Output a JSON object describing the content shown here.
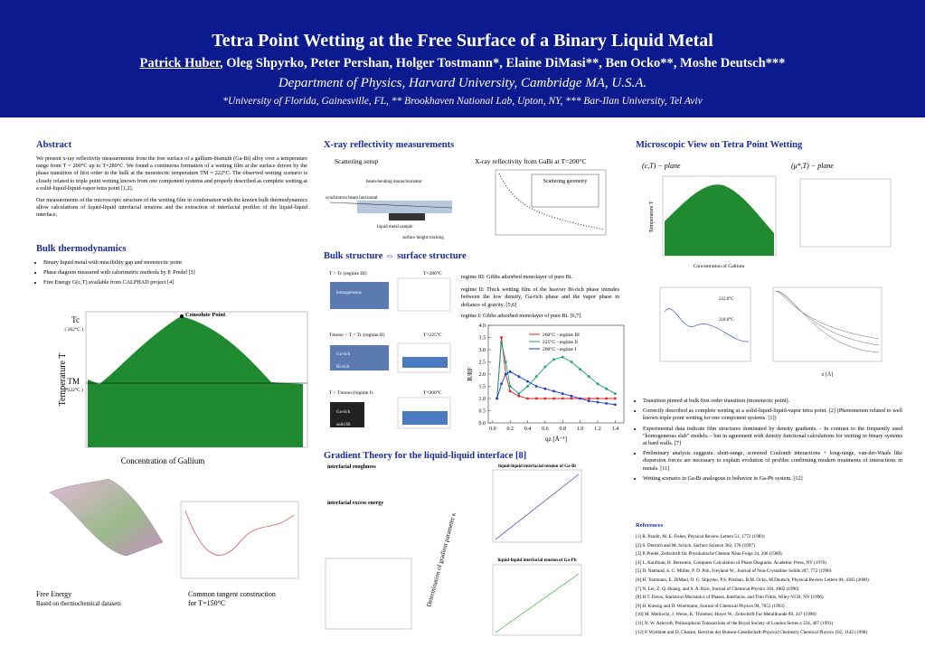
{
  "header": {
    "title": "Tetra Point Wetting at the Free Surface of a Binary Liquid Metal",
    "author_lead": "Patrick Huber",
    "authors_rest": ", Oleg Shpyrko, Peter Pershan, Holger Tostmann*, Elaine DiMasi**, Ben Ocko**, Moshe Deutsch***",
    "department": "Department of Physics, Harvard University, Cambridge MA, U.S.A.",
    "affiliations": "*University of Florida, Gainesville, FL, ** Brookhaven National Lab, Upton, NY, *** Bar-Ilan University, Tel Aviv"
  },
  "abstract": {
    "heading": "Abstract",
    "paragraphs": [
      "We present x-ray reflectivity measurements from the free surface of a gallium-bismuth (Ga-Bi) alloy over a temperature range from T = 200°C up to T=280°C. We found a continuous formation of a wetting film at the surface driven by the phase transition of first order in the bulk at the monotectic temperature TM = 222°C. The observed wetting scenario is closely related to triple point wetting known from one component systems and properly described as complete wetting at a solid-liquid-liquid-vapor tetra point [1,2].",
      "Our measurements of the microscopic structure of the wetting film in combination with the known bulk thermodynamics allow calculations of liquid-liquid interfacial tensions and the extraction of interfacial profiles of the liquid-liquid interface."
    ]
  },
  "bulk": {
    "heading": "Bulk thermodynamics",
    "bullets": [
      "Binary liquid metal with miscibility gap and monotectic point",
      "Phase diagram measured with calorimetric methods by P. Predel [3]",
      "Free Energy G(c,T) available from CALPHAD project [4]"
    ],
    "consolute": "Consolute Point",
    "tc": "Tc",
    "tc_value": "( 262°C )",
    "tm": "TM",
    "tm_value": "( 222°C )",
    "ylabel": "Temperature T",
    "xlabel": "Concentration of Gallium",
    "free_energy": "Free Energy",
    "free_energy_note": "Based on thermochemical datasets",
    "tangent": "Common tangent construction",
    "tangent_note": "for T=150°C"
  },
  "xray": {
    "heading": "X-ray reflectivity measurements",
    "setup": "Scattering setup",
    "monochromator": "beam-bending monochromator",
    "beam": "synchrotron beam horizontal",
    "sample": "liquid metal sample",
    "tracking": "surface height tracking",
    "reflectivity_title": "X-ray reflectivity from GaBi at T=200°C",
    "geometry": "Scattering geometry"
  },
  "structure": {
    "heading": "Bulk structure ⇔ surface structure",
    "panels": [
      {
        "regime": "T > Tc (regime III)",
        "temperature": "T=280°C",
        "labels": [
          "homogeneous"
        ]
      },
      {
        "regime": "Tmono < T < Tc (regime II)",
        "temperature": "T=225°C",
        "labels": [
          "Ga-rich",
          "Bi-rich"
        ]
      },
      {
        "regime": "T < Tmono (regime I)",
        "temperature": "T=200°C",
        "labels": [
          "Ga-rich",
          "solid Bi"
        ]
      }
    ],
    "regimes": [
      "regime III: Gibbs adsorbed monolayer of pure Bi.",
      "regime II: Thick wetting film of the heavier Bi-rich phase intrudes between the low density, Ga-rich phase and the vapor phase in defiance of gravity. [5,6]",
      "regime I: Gibbs adsorbed monolayer of pure Bi. [6,7]"
    ]
  },
  "chart_data": {
    "type": "line",
    "x_label": "qz [Å⁻¹]",
    "y_label": "R/RF",
    "x": [
      0.05,
      0.1,
      0.15,
      0.2,
      0.3,
      0.4,
      0.5,
      0.6,
      0.7,
      0.8,
      0.9,
      1.0,
      1.1,
      1.2,
      1.3,
      1.4
    ],
    "series": [
      {
        "name": "260°C - regime III",
        "color": "#e02020",
        "values": [
          1.0,
          3.5,
          2.0,
          1.3,
          1.1,
          1.0,
          1.0,
          1.0,
          1.0,
          1.0,
          1.0,
          1.0,
          1.0,
          1.0,
          1.0,
          1.0
        ]
      },
      {
        "name": "225°C - regime II",
        "color": "#15a07a",
        "values": [
          1.0,
          3.3,
          2.5,
          1.5,
          1.2,
          1.5,
          1.9,
          2.3,
          2.6,
          2.7,
          2.5,
          2.2,
          1.9,
          1.6,
          1.4,
          1.2
        ]
      },
      {
        "name": "200°C - regime I",
        "color": "#1a3ad0",
        "values": [
          1.0,
          1.6,
          2.0,
          2.1,
          1.9,
          1.7,
          1.5,
          1.4,
          1.3,
          1.2,
          1.1,
          1.0,
          0.9,
          0.85,
          0.8,
          0.75
        ]
      }
    ],
    "xlim": [
      -0.05,
      1.5
    ],
    "xticks": [
      {
        "value": 0,
        "label": "0.0"
      },
      0.2,
      0.4,
      0.6,
      0.8,
      {
        "value": 1,
        "label": "1.0"
      },
      1.2,
      1.4
    ],
    "ylim": [
      0,
      4
    ],
    "yticks": [
      {
        "value": 0,
        "label": "0.0"
      },
      0.5,
      {
        "value": 1,
        "label": "1.0"
      },
      1.5,
      {
        "value": 2,
        "label": "2.0"
      },
      2.5,
      {
        "value": 3,
        "label": "3.0"
      },
      3.5,
      {
        "value": 4,
        "label": "4.0"
      }
    ]
  },
  "gradient": {
    "heading": "Gradient Theory for the liquid-liquid interface [8]",
    "roughness": "interfacial roughness",
    "excess": "interfacial excess energy",
    "tension_gabi": "liquid-liquid interfacial tension of Ga-Bi",
    "tension_gapb": "liquid-liquid interfacial tension of Ga-Pb",
    "kappa": "Determination of gradient parameter κ"
  },
  "micro": {
    "heading": "Microscopic View on Tetra Point Wetting",
    "plane_c": "(c,T) − plane",
    "plane_mu": "(μ*,T) − plane",
    "xlabel": "Concentration of Gallium",
    "ylabel": "Temperature T",
    "t1": "222.0°C",
    "t2": "218.0°C",
    "zlabel": "z [Å]",
    "bullets": [
      "Transition pinned at bulk first order transition (monotectic point).",
      "Correctly described as complete wetting at a solid-liquid-liquid-vapor tetra point. [2] (Phenomenon related to well known triple point wetting for one component systems. [1])",
      "Experimental data indicate film structures dominated by density gradients. - In contrast to the frequently used \"homogeneous slab\" models. - but in agreement with density functional calculations for wetting in binary systems at hard walls. [7]",
      "Preliminary analysis suggests: short-range, screened Coulomb interactions + long-range, van-der-Waals like dispersion forces are necessary to explain evolution of profiles confirming modern treatments of interactions in metals. [11]",
      "Wetting scenario in Ga-Bi analogous to behavior in Ga-Pb system. [12]"
    ]
  },
  "references": {
    "heading": "References",
    "items": [
      "[1] R. Pandit, M. E. Fisher, Physical Review Letters 51, 1772 (1983)",
      "[2] S. Dietrich and M. Schick, Surface Science 382, 178 (1997)",
      "[3] P. Predel, Zeitschrift für Physikalische Chemie Neue Folge 24, 206 (1960)",
      "[4] L. Kaufman, H. Bernstein, Computer Calculation of Phase Diagrams. Academic Press, NY (1970)",
      "[5] D. Nattland, S. C. Müller, P. D. Poh, Freyland W., Journal of Non-Crystalline Solids 207, 772 (1996)",
      "[6] H. Tostmann, E. DiMasi, O. G. Shpyrko, P.S. Pershan, B.M. Ocko, M.Deutsch, Physical Review Letters 84, 4385 (2000)",
      "[7] N. Lei, Z. Q. Huang, and S. A. Rice, Journal of Chemical Physics 104, 4802 (1996)",
      "[8] H.T. Davis, Statistical Mechanics of Phases, Interfaces, and Thin Films, Wiley-VCH, NY (1996)",
      "[9] H. Kiessig and D. Woermann, Journal of Chemical Physics 98, 7653 (1993)",
      "[10] M. Merkwitz, J. Weise, K. Thriemer, Hoyer W., Zeitschrift Fur Metallkunde 89, 247 (1998)",
      "[11] N. W. Ashcroft, Philosophical Transactions of the Royal Society of London Series a 334, 407 (1991)",
      "[12] P. Wynblatt and D. Chatain, Berichte der Bunsen-Gesellschaft-Physical Chemistry Chemical Physics 102, 1142 (1998)"
    ]
  }
}
